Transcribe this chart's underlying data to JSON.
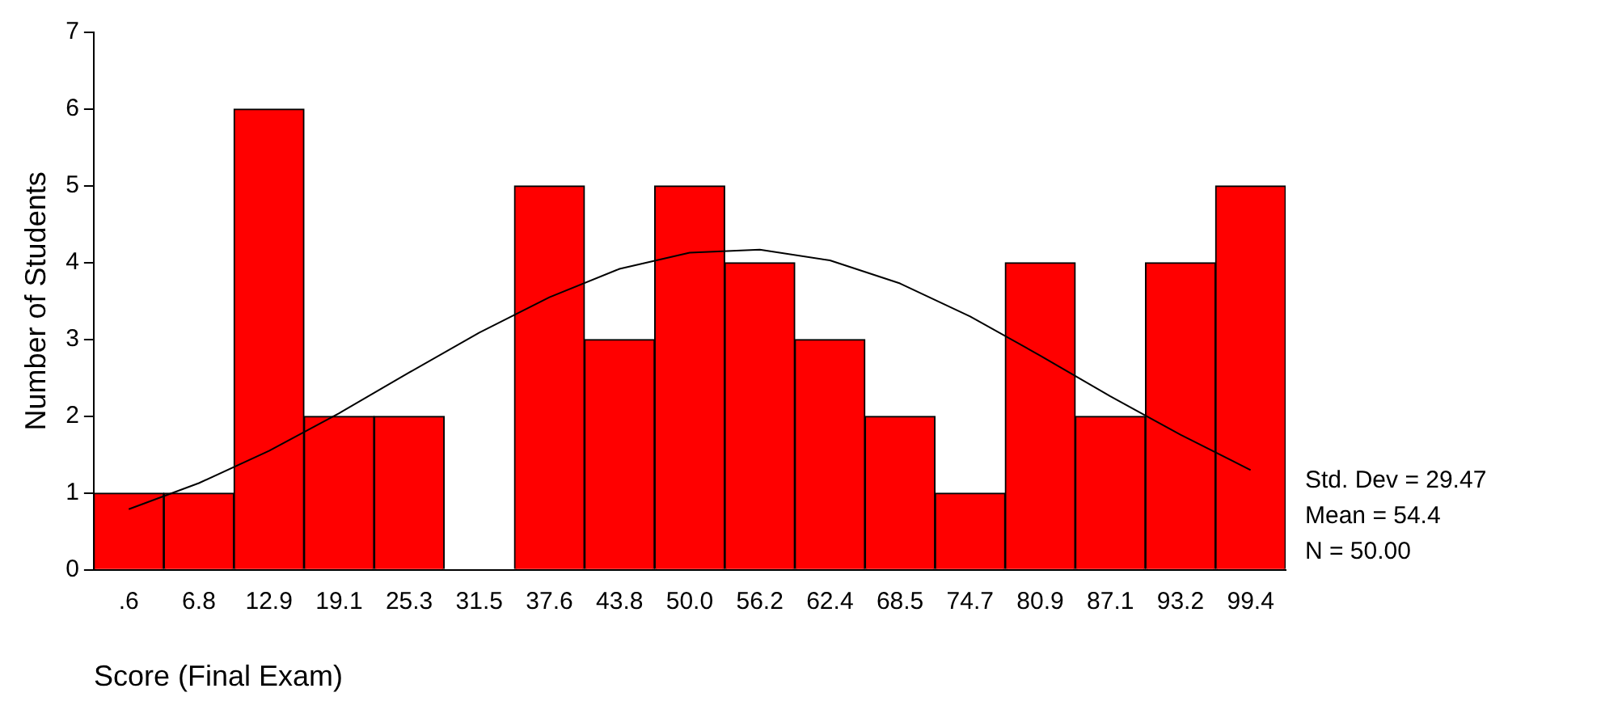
{
  "chart_data": {
    "type": "bar",
    "xlabel": "Score (Final Exam)",
    "ylabel": "Number of Students",
    "categories": [
      ".6",
      "6.8",
      "12.9",
      "19.1",
      "25.3",
      "31.5",
      "37.6",
      "43.8",
      "50.0",
      "56.2",
      "62.4",
      "68.5",
      "74.7",
      "80.9",
      "87.1",
      "93.2",
      "99.4"
    ],
    "series": [
      {
        "color": "#ff0000",
        "values": [
          1,
          1,
          6,
          2,
          2,
          0,
          5,
          3,
          5,
          4,
          3,
          2,
          1,
          4,
          2,
          4,
          5
        ]
      },
      {
        "type": "line",
        "color": "#000000",
        "values": [
          0.79,
          1.13,
          1.55,
          2.04,
          2.57,
          3.09,
          3.55,
          3.92,
          4.13,
          4.17,
          4.03,
          3.73,
          3.3,
          2.79,
          2.26,
          1.76,
          1.3
        ]
      }
    ],
    "ylim": [
      0,
      7
    ],
    "yticks": [
      0,
      1,
      2,
      3,
      4,
      5,
      6,
      7
    ],
    "grid": false,
    "legend": false,
    "annotations": [
      "Std. Dev = 29.47",
      "Mean = 54.4",
      "N = 50.00"
    ]
  }
}
